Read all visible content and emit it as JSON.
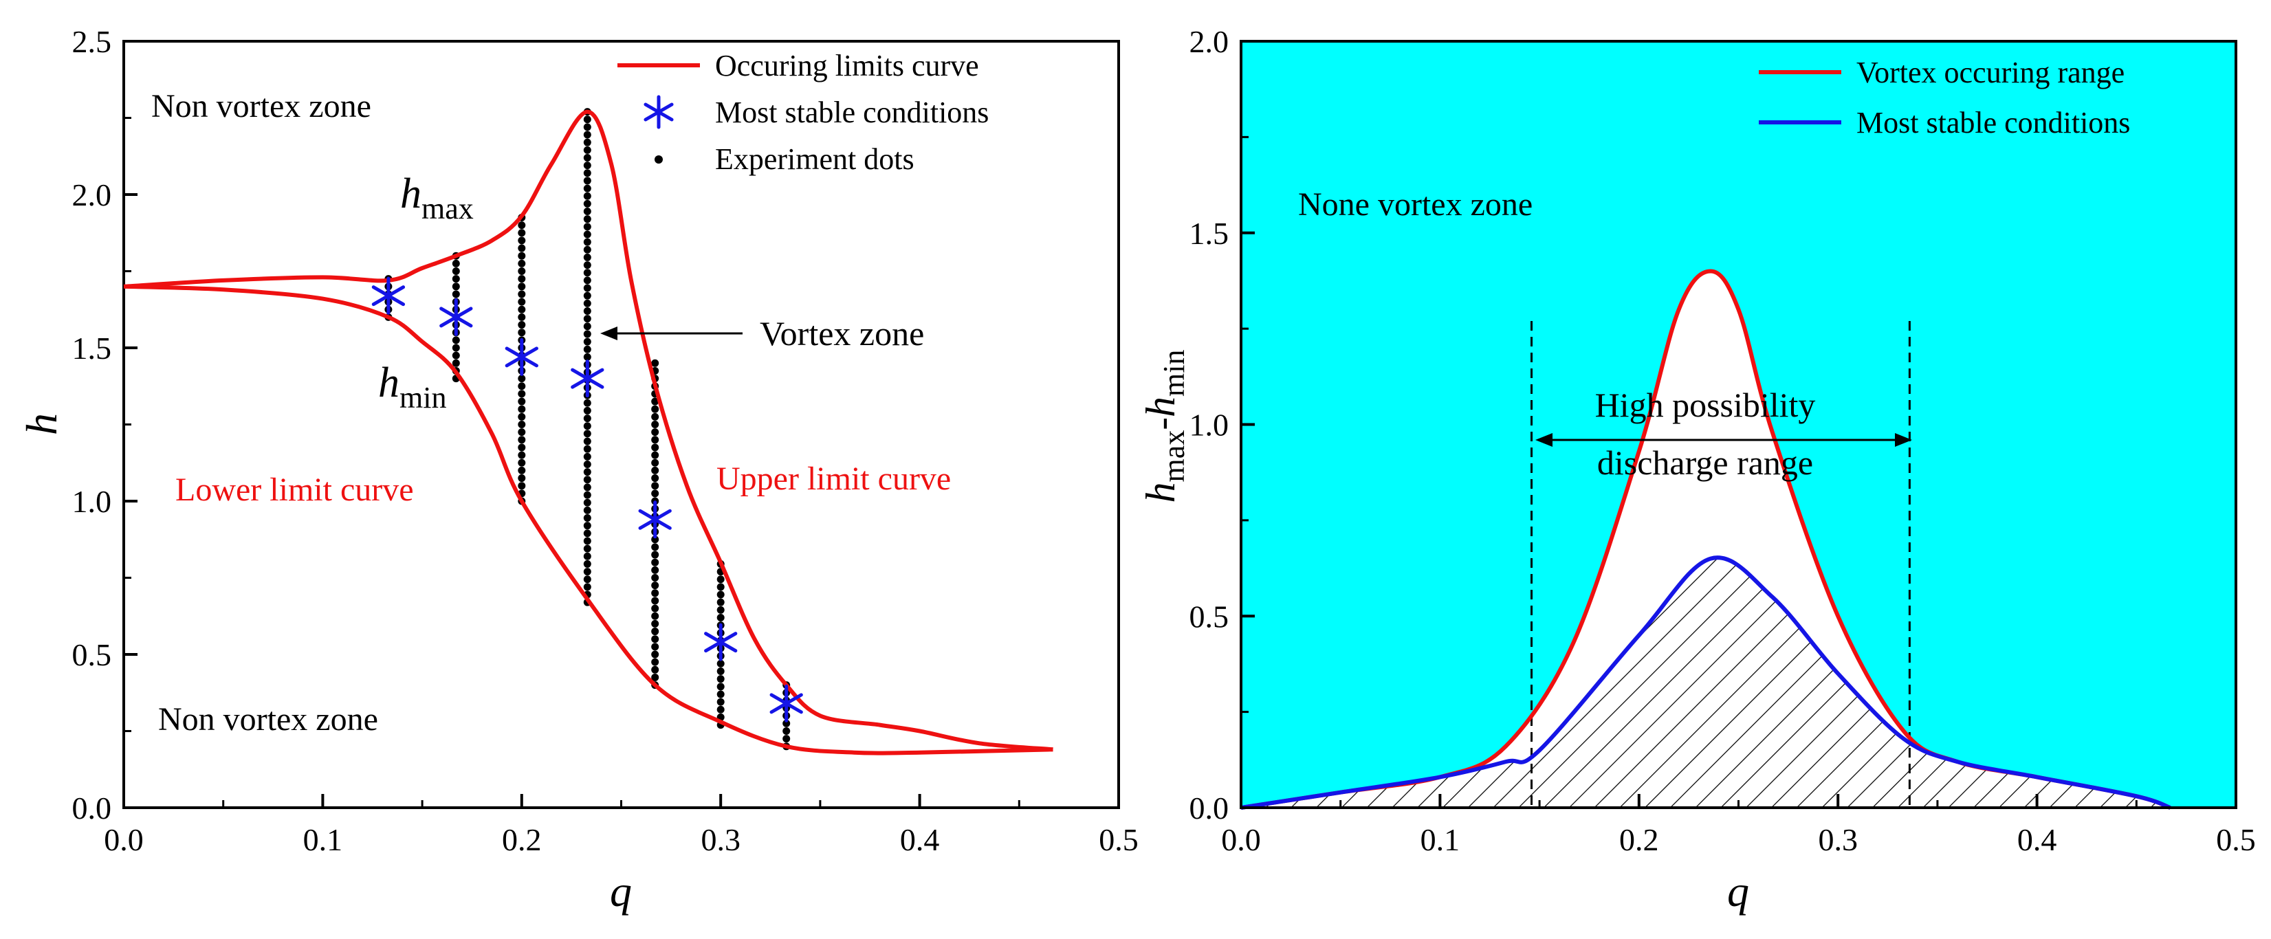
{
  "colors": {
    "red": "#ee1111",
    "blue": "#1515e6",
    "cyan": "#00ffff",
    "black": "#000000"
  },
  "chart_data": [
    {
      "type": "line",
      "xlabel": "q",
      "ylabel": "h",
      "xlim": [
        0,
        0.5
      ],
      "ylim": [
        0,
        2.5
      ],
      "xticks": [
        "0.0",
        "0.1",
        "0.2",
        "0.3",
        "0.4",
        "0.5"
      ],
      "yticks": [
        "0.0",
        "0.5",
        "1.0",
        "1.5",
        "2.0",
        "2.5"
      ],
      "legend": {
        "position": "top-right",
        "entries": [
          "Occuring limits curve",
          "Most stable conditions",
          "Experiment dots"
        ]
      },
      "series": [
        {
          "name": "Occuring limits curve (upper)",
          "points": [
            [
              0,
              1.7
            ],
            [
              0.05,
              1.72
            ],
            [
              0.1,
              1.73
            ],
            [
              0.133,
              1.72
            ],
            [
              0.15,
              1.76
            ],
            [
              0.167,
              1.8
            ],
            [
              0.185,
              1.85
            ],
            [
              0.2,
              1.93
            ],
            [
              0.215,
              2.1
            ],
            [
              0.233,
              2.27
            ],
            [
              0.245,
              2.1
            ],
            [
              0.255,
              1.72
            ],
            [
              0.267,
              1.38
            ],
            [
              0.283,
              1.05
            ],
            [
              0.3,
              0.8
            ],
            [
              0.317,
              0.55
            ],
            [
              0.333,
              0.4
            ],
            [
              0.35,
              0.3
            ],
            [
              0.38,
              0.27
            ],
            [
              0.4,
              0.25
            ],
            [
              0.43,
              0.21
            ],
            [
              0.467,
              0.19
            ]
          ]
        },
        {
          "name": "Occuring limits curve (lower)",
          "points": [
            [
              0,
              1.7
            ],
            [
              0.05,
              1.69
            ],
            [
              0.1,
              1.66
            ],
            [
              0.133,
              1.6
            ],
            [
              0.15,
              1.52
            ],
            [
              0.167,
              1.42
            ],
            [
              0.185,
              1.22
            ],
            [
              0.2,
              1.0
            ],
            [
              0.233,
              0.68
            ],
            [
              0.267,
              0.4
            ],
            [
              0.3,
              0.28
            ],
            [
              0.333,
              0.2
            ],
            [
              0.367,
              0.18
            ],
            [
              0.4,
              0.18
            ],
            [
              0.467,
              0.19
            ]
          ]
        },
        {
          "name": "Most stable conditions",
          "points": [
            [
              0.133,
              1.67
            ],
            [
              0.167,
              1.6
            ],
            [
              0.2,
              1.47
            ],
            [
              0.233,
              1.4
            ],
            [
              0.267,
              0.94
            ],
            [
              0.3,
              0.54
            ],
            [
              0.333,
              0.34
            ]
          ]
        },
        {
          "name": "Experiment dots",
          "columns": [
            {
              "q": 0.133,
              "h_min": 1.6,
              "h_max": 1.73,
              "step": 0.025
            },
            {
              "q": 0.167,
              "h_min": 1.4,
              "h_max": 1.8,
              "step": 0.025
            },
            {
              "q": 0.2,
              "h_min": 1.0,
              "h_max": 1.93,
              "step": 0.025
            },
            {
              "q": 0.233,
              "h_min": 0.67,
              "h_max": 2.27,
              "step": 0.025
            },
            {
              "q": 0.267,
              "h_min": 0.4,
              "h_max": 1.47,
              "step": 0.025
            },
            {
              "q": 0.3,
              "h_min": 0.27,
              "h_max": 0.8,
              "step": 0.025
            },
            {
              "q": 0.333,
              "h_min": 0.2,
              "h_max": 0.4,
              "step": 0.025
            }
          ]
        }
      ],
      "annotations": {
        "zone_top": "Non vortex zone",
        "zone_bottom": "Non vortex zone",
        "h_max_main": "h",
        "h_max_sub": "max",
        "h_min_main": "h",
        "h_min_sub": "min",
        "vortex_zone": "Vortex zone",
        "lower_limit": "Lower limit curve",
        "upper_limit": "Upper limit curve"
      }
    },
    {
      "type": "area",
      "xlabel": "q",
      "ylabel_main_1": "h",
      "ylabel_sub_1": "max",
      "ylabel_dash": "-",
      "ylabel_main_2": "h",
      "ylabel_sub_2": "min",
      "xlim": [
        0,
        0.5
      ],
      "ylim": [
        0,
        2.0
      ],
      "xticks": [
        "0.0",
        "0.1",
        "0.2",
        "0.3",
        "0.4",
        "0.5"
      ],
      "yticks": [
        "0.0",
        "0.5",
        "1.0",
        "1.5",
        "2.0"
      ],
      "legend": {
        "position": "top-right",
        "entries": [
          "Vortex occuring range",
          "Most stable conditions"
        ]
      },
      "series": [
        {
          "name": "Vortex occuring range",
          "points": [
            [
              0,
              0
            ],
            [
              0.05,
              0.04
            ],
            [
              0.1,
              0.08
            ],
            [
              0.133,
              0.16
            ],
            [
              0.167,
              0.43
            ],
            [
              0.2,
              0.93
            ],
            [
              0.22,
              1.3
            ],
            [
              0.236,
              1.4
            ],
            [
              0.25,
              1.3
            ],
            [
              0.267,
              0.98
            ],
            [
              0.3,
              0.5
            ],
            [
              0.333,
              0.2
            ],
            [
              0.36,
              0.12
            ],
            [
              0.4,
              0.08
            ],
            [
              0.45,
              0.03
            ],
            [
              0.467,
              0
            ]
          ]
        },
        {
          "name": "Most stable conditions",
          "points": [
            [
              0,
              0
            ],
            [
              0.05,
              0.04
            ],
            [
              0.1,
              0.08
            ],
            [
              0.133,
              0.12
            ],
            [
              0.15,
              0.15
            ],
            [
              0.2,
              0.45
            ],
            [
              0.236,
              0.65
            ],
            [
              0.267,
              0.55
            ],
            [
              0.3,
              0.35
            ],
            [
              0.333,
              0.18
            ],
            [
              0.36,
              0.12
            ],
            [
              0.4,
              0.08
            ],
            [
              0.45,
              0.03
            ],
            [
              0.467,
              0
            ]
          ]
        }
      ],
      "dashed_lines_q": [
        0.146,
        0.336
      ],
      "annotations": {
        "zone": "None vortex zone",
        "range_line1": "High possibility",
        "range_line2": "discharge range"
      }
    }
  ]
}
